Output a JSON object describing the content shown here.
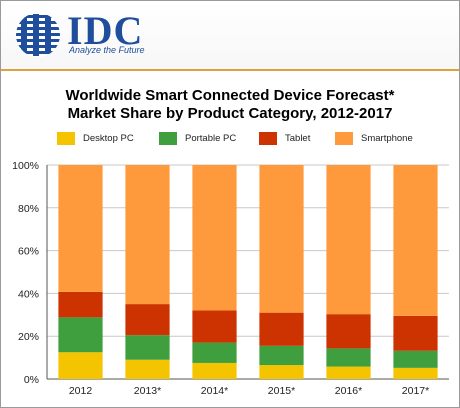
{
  "brand": {
    "name": "IDC",
    "tagline": "Analyze the Future",
    "color": "#1f4e9c"
  },
  "chart_data": {
    "type": "bar",
    "stacked": true,
    "percent": true,
    "title": "Worldwide Smart Connected Device Forecast*",
    "subtitle": "Market Share by Product Category, 2012-2017",
    "categories": [
      "2012",
      "2013*",
      "2014*",
      "2015*",
      "2016*",
      "2017*"
    ],
    "y_ticks": [
      "0%",
      "20%",
      "40%",
      "60%",
      "80%",
      "100%"
    ],
    "ylim": [
      0,
      100
    ],
    "grid": true,
    "legend_position": "top",
    "series": [
      {
        "name": "Desktop PC",
        "color": "#f5c400",
        "values": [
          12.5,
          9.0,
          7.5,
          6.5,
          5.8,
          5.2
        ]
      },
      {
        "name": "Portable PC",
        "color": "#3f9f3f",
        "values": [
          16.3,
          11.5,
          9.5,
          9.0,
          8.5,
          8.0
        ]
      },
      {
        "name": "Tablet",
        "color": "#cc3300",
        "values": [
          11.9,
          14.5,
          15.0,
          15.5,
          16.0,
          16.3
        ]
      },
      {
        "name": "Smartphone",
        "color": "#ff9a3c",
        "values": [
          59.3,
          65.0,
          68.0,
          69.0,
          69.7,
          70.5
        ]
      }
    ]
  }
}
